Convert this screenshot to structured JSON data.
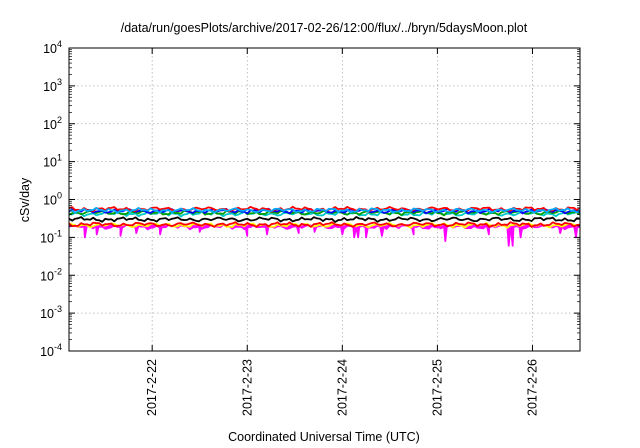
{
  "chart_data": {
    "type": "line",
    "title": "/data/run/goesPlots/archive/2017-02-26/12:00/flux/../bryn/5daysMoon.plot",
    "xlabel": "Coordinated Universal Time (UTC)",
    "ylabel": "cSv/day",
    "yscale": "log",
    "ylim": [
      0.0001,
      10000
    ],
    "y_ticks": [
      {
        "value": 0.0001,
        "base": "10",
        "exp": "-4"
      },
      {
        "value": 0.001,
        "base": "10",
        "exp": "-3"
      },
      {
        "value": 0.01,
        "base": "10",
        "exp": "-2"
      },
      {
        "value": 0.1,
        "base": "10",
        "exp": "-1"
      },
      {
        "value": 1,
        "base": "10",
        "exp": "0"
      },
      {
        "value": 10,
        "base": "10",
        "exp": "1"
      },
      {
        "value": 100,
        "base": "10",
        "exp": "2"
      },
      {
        "value": 1000,
        "base": "10",
        "exp": "3"
      },
      {
        "value": 10000,
        "base": "10",
        "exp": "4"
      }
    ],
    "xlim": [
      "2017-02-21T03:00",
      "2017-02-26T12:00"
    ],
    "x_ticks": [
      {
        "value": "2017-02-22T00:00",
        "label": "2017-2-22"
      },
      {
        "value": "2017-02-23T00:00",
        "label": "2017-2-23"
      },
      {
        "value": "2017-02-24T00:00",
        "label": "2017-2-24"
      },
      {
        "value": "2017-02-25T00:00",
        "label": "2017-2-25"
      },
      {
        "value": "2017-02-26T00:00",
        "label": "2017-2-26"
      }
    ],
    "grid": true,
    "legend": "none",
    "series": [
      {
        "color": "#ff00ff",
        "typical": 0.19,
        "fill_to_series": 1,
        "dips": [
          {
            "x": "2017-02-21T07:00",
            "y": 0.1
          },
          {
            "x": "2017-02-21T10:00",
            "y": 0.12
          },
          {
            "x": "2017-02-21T16:00",
            "y": 0.11
          },
          {
            "x": "2017-02-21T20:00",
            "y": 0.13
          },
          {
            "x": "2017-02-22T02:00",
            "y": 0.12
          },
          {
            "x": "2017-02-22T12:00",
            "y": 0.14
          },
          {
            "x": "2017-02-23T00:00",
            "y": 0.11
          },
          {
            "x": "2017-02-23T05:00",
            "y": 0.12
          },
          {
            "x": "2017-02-23T13:00",
            "y": 0.13
          },
          {
            "x": "2017-02-23T17:00",
            "y": 0.14
          },
          {
            "x": "2017-02-24T00:00",
            "y": 0.12
          },
          {
            "x": "2017-02-24T03:00",
            "y": 0.1
          },
          {
            "x": "2017-02-24T04:00",
            "y": 0.1
          },
          {
            "x": "2017-02-24T06:00",
            "y": 0.1
          },
          {
            "x": "2017-02-24T10:00",
            "y": 0.11
          },
          {
            "x": "2017-02-24T18:00",
            "y": 0.12
          },
          {
            "x": "2017-02-25T02:00",
            "y": 0.08
          },
          {
            "x": "2017-02-25T13:00",
            "y": 0.12
          },
          {
            "x": "2017-02-25T18:00",
            "y": 0.06
          },
          {
            "x": "2017-02-25T19:00",
            "y": 0.06
          },
          {
            "x": "2017-02-25T21:00",
            "y": 0.1
          },
          {
            "x": "2017-02-26T07:00",
            "y": 0.13
          },
          {
            "x": "2017-02-26T11:00",
            "y": 0.1
          }
        ]
      },
      {
        "color": "#ffff00",
        "typical": 0.21,
        "dips": []
      },
      {
        "color": "#ff0000",
        "typical": 0.22,
        "dips": []
      },
      {
        "color": "#000000",
        "typical": 0.3,
        "dips": []
      },
      {
        "color": "#00c8c8",
        "typical": 0.42,
        "dips": []
      },
      {
        "color": "#00a000",
        "typical": 0.45,
        "dips": []
      },
      {
        "color": "#0000ff",
        "typical": 0.5,
        "dips": []
      },
      {
        "color": "#ff0000",
        "typical": 0.56,
        "dips": []
      },
      {
        "color": "#00aaff",
        "typical": 0.52,
        "dips": []
      }
    ]
  }
}
